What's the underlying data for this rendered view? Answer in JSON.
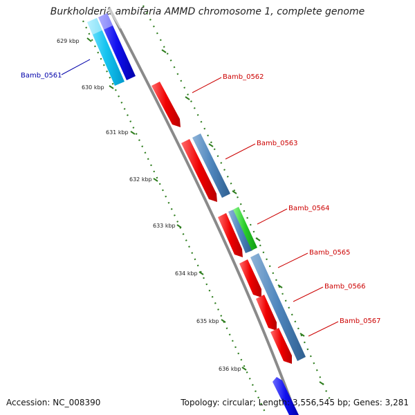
{
  "title": "Burkholderia ambifaria AMMD chromosome 1, complete genome",
  "footer": {
    "accession": "Accession: NC_008390",
    "topology": "Topology: circular; Length: 3,556,545 bp; Genes: 3,281"
  },
  "colors": {
    "backbone": "#8a8a8a",
    "tick": "#2e7d1e",
    "label_red": "#cc0000",
    "label_blue": "#0000aa"
  },
  "ticks": [
    {
      "kbp": 629,
      "label": "629 kbp"
    },
    {
      "kbp": 630,
      "label": "630 kbp"
    },
    {
      "kbp": 631,
      "label": "631 kbp"
    },
    {
      "kbp": 632,
      "label": "632 kbp"
    },
    {
      "kbp": 633,
      "label": "633 kbp"
    },
    {
      "kbp": 634,
      "label": "634 kbp"
    },
    {
      "kbp": 635,
      "label": "635 kbp"
    },
    {
      "kbp": 636,
      "label": "636 kbp"
    }
  ],
  "genes": [
    {
      "id": "Bamb_0561",
      "label": "Bamb_0561",
      "label_color": "#0000aa"
    },
    {
      "id": "Bamb_0562",
      "label": "Bamb_0562",
      "label_color": "#cc0000"
    },
    {
      "id": "Bamb_0563",
      "label": "Bamb_0563",
      "label_color": "#cc0000"
    },
    {
      "id": "Bamb_0564",
      "label": "Bamb_0564",
      "label_color": "#cc0000"
    },
    {
      "id": "Bamb_0565",
      "label": "Bamb_0565",
      "label_color": "#cc0000"
    },
    {
      "id": "Bamb_0566",
      "label": "Bamb_0566",
      "label_color": "#cc0000"
    },
    {
      "id": "Bamb_0567",
      "label": "Bamb_0567",
      "label_color": "#cc0000"
    }
  ]
}
